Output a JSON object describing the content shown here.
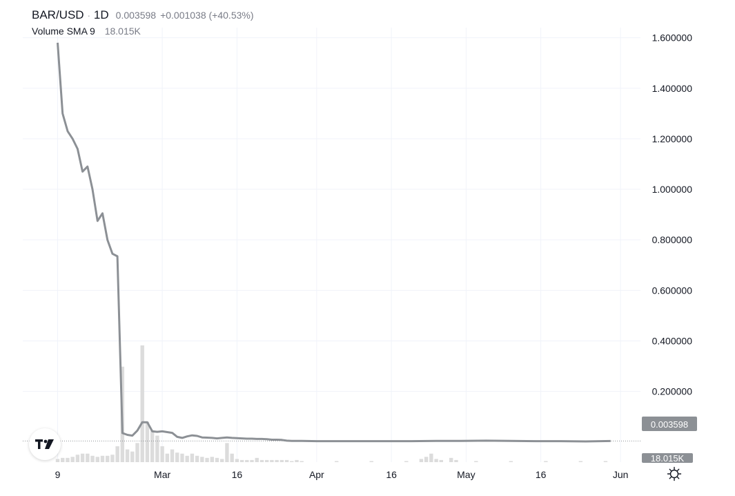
{
  "header": {
    "symbol": "BAR/USD",
    "separator": "·",
    "interval": "1D",
    "last": "0.003598",
    "change": "+0.001038 (+40.53%)",
    "volume_label": "Volume SMA 9",
    "volume_value": "18.015K"
  },
  "price_tag": "0.003598",
  "volume_tag": "18.015K",
  "logo_icon": "tradingview-logo-icon",
  "settings_icon": "gear-icon",
  "colors": {
    "line": "#8c9095",
    "volume": "#dcdcdc",
    "price_tag_bg": "#8c9095",
    "grid": "#f0f3fa"
  },
  "chart_data": {
    "type": "line",
    "title": "BAR/USD",
    "xlabel": "",
    "ylabel": "",
    "ylim": [
      -0.08,
      1.64
    ],
    "grid": true,
    "y_ticks": [
      1.6,
      1.4,
      1.2,
      1.0,
      0.8,
      0.6,
      0.4,
      0.2
    ],
    "y_tick_labels": [
      "1.600000",
      "1.400000",
      "1.200000",
      "1.000000",
      "0.800000",
      "0.600000",
      "0.400000",
      "0.200000"
    ],
    "x_ticks": [
      {
        "label": "9",
        "date": "2024-02-09"
      },
      {
        "label": "Mar",
        "date": "2024-03-01"
      },
      {
        "label": "16",
        "date": "2024-03-16"
      },
      {
        "label": "Apr",
        "date": "2024-04-01"
      },
      {
        "label": "16",
        "date": "2024-04-16"
      },
      {
        "label": "May",
        "date": "2024-05-01"
      },
      {
        "label": "16",
        "date": "2024-05-16"
      },
      {
        "label": "Jun",
        "date": "2024-06-01"
      }
    ],
    "x_range": [
      "2024-02-02",
      "2024-06-05"
    ],
    "series": [
      {
        "values": [
          [
            "2024-02-09",
            1.58
          ],
          [
            "2024-02-10",
            1.3
          ],
          [
            "2024-02-11",
            1.23
          ],
          [
            "2024-02-12",
            1.2
          ],
          [
            "2024-02-13",
            1.16
          ],
          [
            "2024-02-14",
            1.07
          ],
          [
            "2024-02-15",
            1.09
          ],
          [
            "2024-02-16",
            1.0
          ],
          [
            "2024-02-17",
            0.875
          ],
          [
            "2024-02-18",
            0.905
          ],
          [
            "2024-02-19",
            0.8
          ],
          [
            "2024-02-20",
            0.745
          ],
          [
            "2024-02-21",
            0.735
          ],
          [
            "2024-02-22",
            0.035
          ],
          [
            "2024-02-23",
            0.028
          ],
          [
            "2024-02-24",
            0.025
          ],
          [
            "2024-02-25",
            0.045
          ],
          [
            "2024-02-26",
            0.078
          ],
          [
            "2024-02-27",
            0.078
          ],
          [
            "2024-02-28",
            0.042
          ],
          [
            "2024-02-29",
            0.04
          ],
          [
            "2024-03-01",
            0.042
          ],
          [
            "2024-03-02",
            0.039
          ],
          [
            "2024-03-03",
            0.036
          ],
          [
            "2024-03-04",
            0.02
          ],
          [
            "2024-03-05",
            0.016
          ],
          [
            "2024-03-06",
            0.022
          ],
          [
            "2024-03-07",
            0.026
          ],
          [
            "2024-03-08",
            0.024
          ],
          [
            "2024-03-09",
            0.018
          ],
          [
            "2024-03-10",
            0.017
          ],
          [
            "2024-03-11",
            0.016
          ],
          [
            "2024-03-12",
            0.014
          ],
          [
            "2024-03-13",
            0.016
          ],
          [
            "2024-03-14",
            0.018
          ],
          [
            "2024-03-15",
            0.016
          ],
          [
            "2024-03-16",
            0.015
          ],
          [
            "2024-03-17",
            0.014
          ],
          [
            "2024-03-18",
            0.013
          ],
          [
            "2024-03-19",
            0.013
          ],
          [
            "2024-03-20",
            0.012
          ],
          [
            "2024-03-21",
            0.012
          ],
          [
            "2024-03-22",
            0.011
          ],
          [
            "2024-03-23",
            0.009
          ],
          [
            "2024-03-24",
            0.009
          ],
          [
            "2024-03-25",
            0.008
          ],
          [
            "2024-03-26",
            0.005
          ],
          [
            "2024-03-27",
            0.004
          ],
          [
            "2024-03-28",
            0.004
          ],
          [
            "2024-03-29",
            0.004
          ],
          [
            "2024-04-01",
            0.003
          ],
          [
            "2024-04-05",
            0.003
          ],
          [
            "2024-04-10",
            0.003
          ],
          [
            "2024-04-15",
            0.003
          ],
          [
            "2024-04-20",
            0.003
          ],
          [
            "2024-04-25",
            0.004
          ],
          [
            "2024-04-30",
            0.004
          ],
          [
            "2024-05-05",
            0.005
          ],
          [
            "2024-05-10",
            0.004
          ],
          [
            "2024-05-15",
            0.003
          ],
          [
            "2024-05-20",
            0.003
          ],
          [
            "2024-05-25",
            0.002
          ],
          [
            "2024-05-30",
            0.003598
          ]
        ]
      }
    ],
    "volume": {
      "label": "Volume SMA 9",
      "values": [
        [
          "2024-02-09",
          3
        ],
        [
          "2024-02-10",
          4
        ],
        [
          "2024-02-11",
          4
        ],
        [
          "2024-02-12",
          5
        ],
        [
          "2024-02-13",
          7
        ],
        [
          "2024-02-14",
          8
        ],
        [
          "2024-02-15",
          8
        ],
        [
          "2024-02-16",
          6
        ],
        [
          "2024-02-17",
          5
        ],
        [
          "2024-02-18",
          6
        ],
        [
          "2024-02-19",
          6
        ],
        [
          "2024-02-20",
          7
        ],
        [
          "2024-02-21",
          15
        ],
        [
          "2024-02-22",
          90
        ],
        [
          "2024-02-23",
          12
        ],
        [
          "2024-02-24",
          10
        ],
        [
          "2024-02-25",
          18
        ],
        [
          "2024-02-26",
          110
        ],
        [
          "2024-02-27",
          38
        ],
        [
          "2024-02-28",
          30
        ],
        [
          "2024-02-29",
          25
        ],
        [
          "2024-03-01",
          15
        ],
        [
          "2024-03-02",
          8
        ],
        [
          "2024-03-03",
          12
        ],
        [
          "2024-03-04",
          9
        ],
        [
          "2024-03-05",
          8
        ],
        [
          "2024-03-06",
          6
        ],
        [
          "2024-03-07",
          8
        ],
        [
          "2024-03-08",
          6
        ],
        [
          "2024-03-09",
          5
        ],
        [
          "2024-03-10",
          4
        ],
        [
          "2024-03-11",
          5
        ],
        [
          "2024-03-12",
          4
        ],
        [
          "2024-03-13",
          3
        ],
        [
          "2024-03-14",
          18
        ],
        [
          "2024-03-15",
          8
        ],
        [
          "2024-03-16",
          3
        ],
        [
          "2024-03-17",
          2
        ],
        [
          "2024-03-18",
          2
        ],
        [
          "2024-03-19",
          2
        ],
        [
          "2024-03-20",
          4
        ],
        [
          "2024-03-21",
          2
        ],
        [
          "2024-03-22",
          2
        ],
        [
          "2024-03-23",
          2
        ],
        [
          "2024-03-24",
          2
        ],
        [
          "2024-03-25",
          2
        ],
        [
          "2024-03-26",
          2
        ],
        [
          "2024-03-27",
          1
        ],
        [
          "2024-03-28",
          2
        ],
        [
          "2024-03-29",
          1
        ],
        [
          "2024-04-05",
          1
        ],
        [
          "2024-04-12",
          1
        ],
        [
          "2024-04-19",
          1
        ],
        [
          "2024-04-22",
          3
        ],
        [
          "2024-04-23",
          5
        ],
        [
          "2024-04-24",
          8
        ],
        [
          "2024-04-25",
          3
        ],
        [
          "2024-04-26",
          2
        ],
        [
          "2024-04-28",
          4
        ],
        [
          "2024-04-29",
          2
        ],
        [
          "2024-05-03",
          1
        ],
        [
          "2024-05-10",
          1
        ],
        [
          "2024-05-17",
          1
        ],
        [
          "2024-05-24",
          1
        ],
        [
          "2024-05-29",
          1
        ]
      ],
      "max": 110
    }
  }
}
